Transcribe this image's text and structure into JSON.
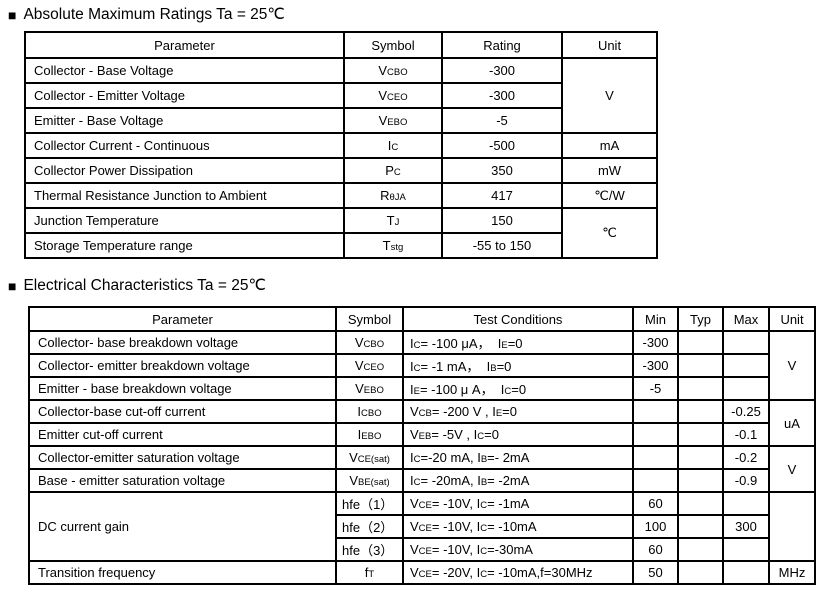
{
  "page": {
    "bullet_icon": "■",
    "colors": {
      "text": "#000000",
      "background": "#ffffff",
      "border": "#000000"
    }
  },
  "abs_max": {
    "title": "Absolute Maximum Ratings Ta = 25℃",
    "headers": {
      "parameter": "Parameter",
      "symbol": "Symbol",
      "rating": "Rating",
      "unit": "Unit"
    },
    "rows": [
      {
        "parameter": "Collector - Base Voltage",
        "symbol": "V~CBO~",
        "rating": "-300",
        "unit": "V"
      },
      {
        "parameter": "Collector - Emitter Voltage",
        "symbol": "V~CEO~",
        "rating": "-300"
      },
      {
        "parameter": "Emitter - Base Voltage",
        "symbol": "V~EBO~",
        "rating": "-5"
      },
      {
        "parameter": "Collector Current  - Continuous",
        "symbol": "I~C~",
        "rating": "-500",
        "unit": "mA"
      },
      {
        "parameter": "Collector Power Dissipation",
        "symbol": "P~C~",
        "rating": "350",
        "unit": "mW"
      },
      {
        "parameter": "Thermal Resistance Junction to Ambient",
        "symbol": "R~θJA~",
        "rating": "417",
        "unit": "℃/W"
      },
      {
        "parameter": "Junction Temperature",
        "symbol": "T~J~",
        "rating": "150",
        "unit": "℃"
      },
      {
        "parameter": "Storage Temperature range",
        "symbol": "T~stg~",
        "rating": "-55 to 150"
      }
    ]
  },
  "elec_char": {
    "title": "Electrical Characteristics Ta = 25℃",
    "headers": {
      "parameter": "Parameter",
      "symbol": "Symbol",
      "test_conditions": "Test Conditions",
      "min": "Min",
      "typ": "Typ",
      "max": "Max",
      "unit": "Unit"
    },
    "rows": [
      {
        "parameter": "Collector- base breakdown voltage",
        "symbol": "V~CBO~",
        "conditions": "I~C~= -100 μA，  I~E~=0",
        "min": "-300",
        "typ": "",
        "max": "",
        "unit": "V"
      },
      {
        "parameter": "Collector- emitter breakdown voltage",
        "symbol": "V~CEO~",
        "conditions": "I~C~= -1 mA，  I~B~=0",
        "min": "-300",
        "typ": "",
        "max": ""
      },
      {
        "parameter": "Emitter - base breakdown voltage",
        "symbol": "V~EBO~",
        "conditions": "I~E~= -100 μ A，  I~C~=0",
        "min": "-5",
        "typ": "",
        "max": ""
      },
      {
        "parameter": "Collector-base cut-off current",
        "symbol": "I~CBO~",
        "conditions": "V~CB~= -200 V , I~E~=0",
        "min": "",
        "typ": "",
        "max": "-0.25",
        "unit": "uA"
      },
      {
        "parameter": "Emitter cut-off current",
        "symbol": "I~EBO~",
        "conditions": "V~EB~= -5V , I~C~=0",
        "min": "",
        "typ": "",
        "max": "-0.1"
      },
      {
        "parameter": "Collector-emitter saturation voltage",
        "symbol": "V~CE(sat)~",
        "conditions": "I~C~=-20 mA, I~B~=- 2mA",
        "min": "",
        "typ": "",
        "max": "-0.2",
        "unit": "V"
      },
      {
        "parameter": "Base - emitter saturation voltage",
        "symbol": "V~BE(sat)~",
        "conditions": "I~C~= -20mA, I~B~= -2mA",
        "min": "",
        "typ": "",
        "max": "-0.9"
      },
      {
        "parameter": "DC current gain",
        "symbol": "hfe（1）",
        "conditions": "V~CE~= -10V, I~C~= -1mA",
        "min": "60",
        "typ": "",
        "max": "",
        "unit": ""
      },
      {
        "symbol": "hfe（2）",
        "conditions": "V~CE~= -10V, I~C~= -10mA",
        "min": "100",
        "typ": "",
        "max": "300"
      },
      {
        "symbol": "hfe（3）",
        "conditions": "V~CE~= -10V, I~C~=-30mA",
        "min": "60",
        "typ": "",
        "max": ""
      },
      {
        "parameter": "Transition frequency",
        "symbol": "f~T~",
        "conditions": "V~CE~= -20V, I~C~= -10mA,f=30MHz",
        "min": "50",
        "typ": "",
        "max": "",
        "unit": "MHz"
      }
    ]
  }
}
